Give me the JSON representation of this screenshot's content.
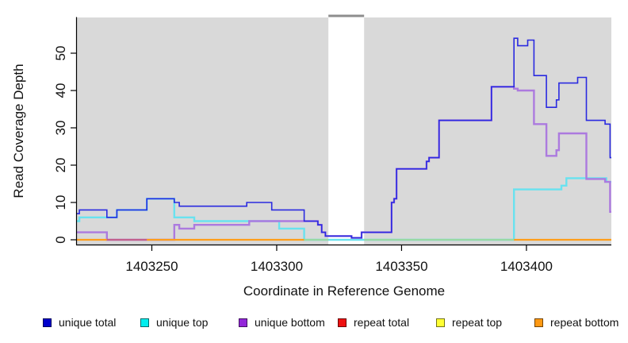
{
  "chart_data": {
    "type": "line",
    "subtype": "step-coverage",
    "title": "",
    "xlabel": "Coordinate in Reference Genome",
    "ylabel": "Read Coverage Depth",
    "x_range": [
      1403220,
      1403434
    ],
    "y_range": [
      0,
      59
    ],
    "x_ticks": [
      "1403250",
      "1403300",
      "1403350",
      "1403400"
    ],
    "x_tick_values": [
      1403250,
      1403300,
      1403350,
      1403400
    ],
    "y_ticks": [
      "0",
      "10",
      "20",
      "30",
      "40",
      "50"
    ],
    "y_tick_values": [
      0,
      10,
      20,
      30,
      40,
      50
    ],
    "grid": "off",
    "panel_bg": "#d9d9d9",
    "gap_band": {
      "x_start": 1403320.7,
      "x_end": 1403335,
      "color": "#ffffff",
      "cap_color": "#8e8e8e"
    },
    "series": [
      {
        "name": "unique top",
        "color": "#69e2ef",
        "width": 2.4,
        "points": [
          [
            1403220,
            5
          ],
          [
            1403221,
            6
          ],
          [
            1403236,
            8
          ],
          [
            1403248,
            11
          ],
          [
            1403259,
            6
          ],
          [
            1403267,
            5
          ],
          [
            1403301,
            3
          ],
          [
            1403311,
            0
          ],
          [
            1403395,
            13.5
          ],
          [
            1403414,
            14.5
          ],
          [
            1403416,
            16.5
          ],
          [
            1403432,
            15.5
          ]
        ]
      },
      {
        "name": "unique bottom",
        "color": "#ac7adf",
        "width": 2.4,
        "points": [
          [
            1403220,
            2
          ],
          [
            1403232,
            0
          ],
          [
            1403259,
            4
          ],
          [
            1403261,
            3
          ],
          [
            1403267,
            4
          ],
          [
            1403289,
            5
          ],
          [
            1403311,
            5
          ],
          [
            1403316.5,
            4
          ],
          [
            1403318,
            2
          ],
          [
            1403319.5,
            1
          ],
          [
            1403330,
            0.5
          ],
          [
            1403334,
            2
          ],
          [
            1403346,
            10
          ],
          [
            1403347,
            11
          ],
          [
            1403348,
            19
          ],
          [
            1403360,
            21
          ],
          [
            1403361,
            22
          ],
          [
            1403365,
            32
          ],
          [
            1403386,
            41
          ],
          [
            1403395,
            40.5
          ],
          [
            1403396.5,
            40
          ],
          [
            1403403,
            31
          ],
          [
            1403408,
            22.5
          ],
          [
            1403412,
            24
          ],
          [
            1403413,
            28.5
          ],
          [
            1403424,
            16.3
          ],
          [
            1403431.5,
            15.5
          ],
          [
            1403433.5,
            7.5
          ]
        ]
      },
      {
        "name": "unique total",
        "color": "#2a2ae0",
        "width": 1.6,
        "points": [
          [
            1403220,
            7
          ],
          [
            1403221,
            8
          ],
          [
            1403232,
            6
          ],
          [
            1403236,
            8
          ],
          [
            1403248,
            11
          ],
          [
            1403259,
            10
          ],
          [
            1403261,
            9
          ],
          [
            1403288,
            10
          ],
          [
            1403298,
            8
          ],
          [
            1403311,
            5
          ],
          [
            1403316.5,
            4
          ],
          [
            1403318,
            2
          ],
          [
            1403319.5,
            1
          ],
          [
            1403330,
            0.5
          ],
          [
            1403334,
            2
          ],
          [
            1403346,
            10
          ],
          [
            1403347,
            11
          ],
          [
            1403348,
            19
          ],
          [
            1403360,
            21
          ],
          [
            1403361,
            22
          ],
          [
            1403365,
            32
          ],
          [
            1403386,
            41
          ],
          [
            1403395,
            54
          ],
          [
            1403396.5,
            52
          ],
          [
            1403400.5,
            53.5
          ],
          [
            1403403,
            44
          ],
          [
            1403408,
            35.5
          ],
          [
            1403412,
            37.5
          ],
          [
            1403413,
            42
          ],
          [
            1403420.5,
            43.5
          ],
          [
            1403424,
            32
          ],
          [
            1403431.5,
            31
          ],
          [
            1403433.5,
            22
          ]
        ]
      }
    ],
    "baseline_segments": [
      {
        "name": "repeat bottom at zero",
        "color": "#ff9e1a",
        "x1": 1403220,
        "x2": 1403232
      },
      {
        "name": "repeat total at zero",
        "color": "#c2608c",
        "x1": 1403232,
        "x2": 1403248
      },
      {
        "name": "repeat bottom at zero",
        "color": "#ff9e1a",
        "x1": 1403248,
        "x2": 1403311
      },
      {
        "name": "repeat top at zero",
        "color": "#98d9a4",
        "x1": 1403311,
        "x2": 1403320.7
      },
      {
        "name": "repeat top at zero",
        "color": "#98d9a4",
        "x1": 1403335,
        "x2": 1403395
      },
      {
        "name": "repeat bottom at zero",
        "color": "#ff9e1a",
        "x1": 1403395,
        "x2": 1403434
      }
    ],
    "repeat_series_values": {
      "repeat total": 0,
      "repeat top": 0,
      "repeat bottom": 0
    }
  },
  "legend": {
    "items": [
      {
        "label": "unique total",
        "color": "#0000cc"
      },
      {
        "label": "unique top",
        "color": "#00eeee"
      },
      {
        "label": "unique bottom",
        "color": "#9326d9"
      },
      {
        "label": "repeat total",
        "color": "#ee1111"
      },
      {
        "label": "repeat top",
        "color": "#ffff33"
      },
      {
        "label": "repeat bottom",
        "color": "#ff9912"
      }
    ]
  }
}
